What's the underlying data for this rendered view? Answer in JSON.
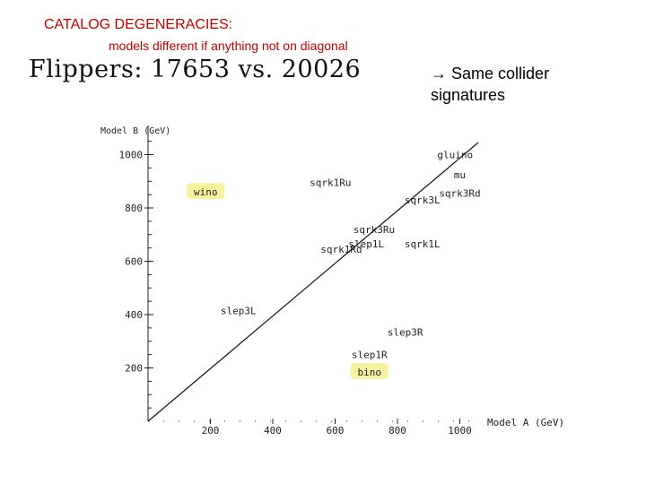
{
  "header": {
    "title": "CATALOG DEGENERACIES:",
    "subtitle": "models different if anything not on diagonal",
    "flippers": "Flippers:  17653  vs.  20026"
  },
  "note": {
    "arrow": "→",
    "text": "Same collider signatures"
  },
  "colors": {
    "title": "#c00000",
    "highlight": "#f7f2a0",
    "axis": "#222222"
  },
  "chart_data": {
    "type": "scatter",
    "xlabel": "Model A (GeV)",
    "ylabel": "Model B (GeV)",
    "xlim": [
      0,
      1050
    ],
    "ylim": [
      0,
      1100
    ],
    "xticks": [
      200,
      400,
      600,
      800,
      1000
    ],
    "yticks": [
      200,
      400,
      600,
      800,
      1000
    ],
    "diagonal": true,
    "grid": false,
    "points": [
      {
        "label": "gluino",
        "x": 985,
        "y": 1000,
        "highlight": false
      },
      {
        "label": "mu",
        "x": 1000,
        "y": 925,
        "highlight": false
      },
      {
        "label": "sqrk1Ru",
        "x": 585,
        "y": 895,
        "highlight": false
      },
      {
        "label": "wino",
        "x": 185,
        "y": 860,
        "highlight": true
      },
      {
        "label": "sqrk3Rd",
        "x": 1000,
        "y": 855,
        "highlight": false
      },
      {
        "label": "sqrk3L",
        "x": 880,
        "y": 830,
        "highlight": false
      },
      {
        "label": "sqrk3Ru",
        "x": 725,
        "y": 720,
        "highlight": false
      },
      {
        "label": "slep1L",
        "x": 700,
        "y": 665,
        "highlight": false
      },
      {
        "label": "sqrk1L",
        "x": 880,
        "y": 665,
        "highlight": false
      },
      {
        "label": "sqrk1Rd",
        "x": 620,
        "y": 645,
        "highlight": false
      },
      {
        "label": "slep3L",
        "x": 290,
        "y": 415,
        "highlight": false
      },
      {
        "label": "slep3R",
        "x": 825,
        "y": 335,
        "highlight": false
      },
      {
        "label": "slep1R",
        "x": 710,
        "y": 250,
        "highlight": false
      },
      {
        "label": "bino",
        "x": 710,
        "y": 185,
        "highlight": true
      }
    ]
  }
}
